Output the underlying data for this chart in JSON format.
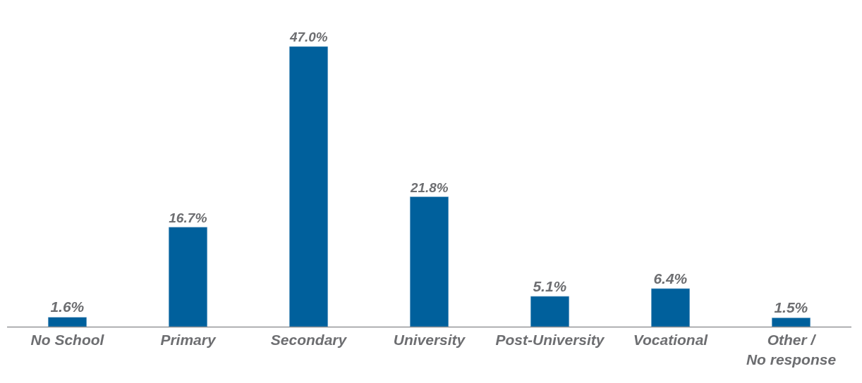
{
  "chart_data": {
    "type": "bar",
    "categories": [
      "No School",
      "Primary",
      "Secondary",
      "University",
      "Post-University",
      "Vocational",
      "Other /\nNo response"
    ],
    "values": [
      1.6,
      16.7,
      47.0,
      21.8,
      5.1,
      6.4,
      1.5
    ],
    "value_labels": [
      "1.6%",
      "16.7%",
      "47.0%",
      "21.8%",
      "5.1%",
      "6.4%",
      "1.5%"
    ],
    "color": "#00609c"
  }
}
